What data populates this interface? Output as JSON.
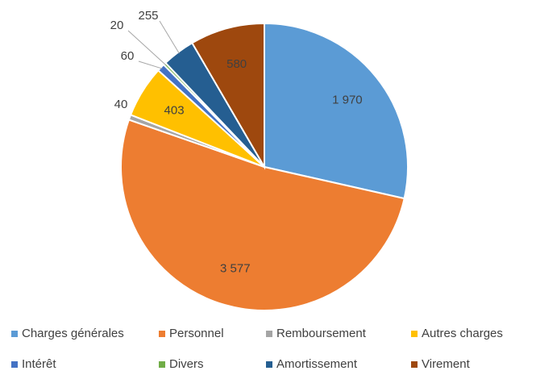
{
  "chart_data": {
    "type": "pie",
    "categories": [
      "Charges générales",
      "Personnel",
      "Remboursement",
      "Autres charges",
      "Intérêt",
      "Divers",
      "Amortissement",
      "Virement"
    ],
    "values": [
      1970,
      3577,
      40,
      403,
      60,
      20,
      255,
      580
    ],
    "value_labels": [
      "1 970",
      "3 577",
      "40",
      "403",
      "60",
      "20",
      "255",
      "580"
    ],
    "colors": [
      "#5b9bd5",
      "#ed7d31",
      "#a5a5a5",
      "#ffc000",
      "#4472c4",
      "#70ad47",
      "#255e91",
      "#9e480e"
    ],
    "legend": "bottom"
  }
}
